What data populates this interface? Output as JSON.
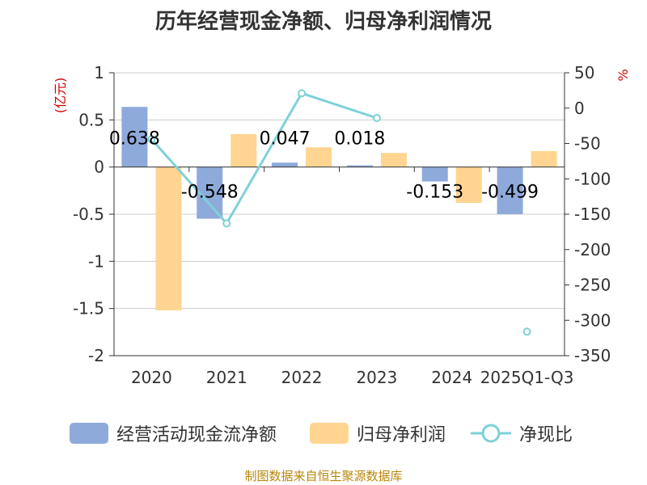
{
  "colors": {
    "cashflow": "#8eaadb",
    "profit": "#ffd591",
    "ratio": "#7fd1d8",
    "axis_unit": "#cc0000",
    "footer": "#b8860b",
    "text": "#333333",
    "grid": "#cccccc"
  },
  "chart_data": {
    "type": "bar",
    "title": "历年经营现金净额、归母净利润情况",
    "categories": [
      "2020",
      "2021",
      "2022",
      "2023",
      "2024",
      "2025Q1-Q3"
    ],
    "left_axis": {
      "unit": "(亿元)",
      "ylim": [
        -2,
        1
      ],
      "ticks": [
        "1",
        "0.5",
        "0",
        "-0.5",
        "-1",
        "-1.5",
        "-2"
      ],
      "tick_values": [
        1,
        0.5,
        0,
        -0.5,
        -1,
        -1.5,
        -2
      ]
    },
    "right_axis": {
      "unit": "%",
      "ylim": [
        -350,
        50
      ],
      "ticks": [
        "50",
        "0",
        "-50",
        "-100",
        "-150",
        "-200",
        "-250",
        "-300",
        "-350"
      ],
      "tick_values": [
        50,
        0,
        -50,
        -100,
        -150,
        -200,
        -250,
        -300,
        -350
      ]
    },
    "grid": true,
    "legend_position": "bottom",
    "series": [
      {
        "name": "经营活动现金流净额",
        "type": "bar",
        "axis": "left",
        "values": [
          0.638,
          -0.548,
          0.047,
          0.018,
          -0.153,
          -0.499
        ],
        "labels": [
          "0.638",
          "-0.548",
          "0.047",
          "0.018",
          "-0.153",
          "-0.499"
        ]
      },
      {
        "name": "归母净利润",
        "type": "bar",
        "axis": "left",
        "values": [
          -1.52,
          0.35,
          0.21,
          0.15,
          -0.38,
          0.17
        ]
      },
      {
        "name": "净现比",
        "type": "line",
        "axis": "right",
        "values": [
          -44,
          -163,
          21,
          -14,
          null,
          -316
        ]
      }
    ]
  },
  "footer": "制图数据来自恒生聚源数据库"
}
